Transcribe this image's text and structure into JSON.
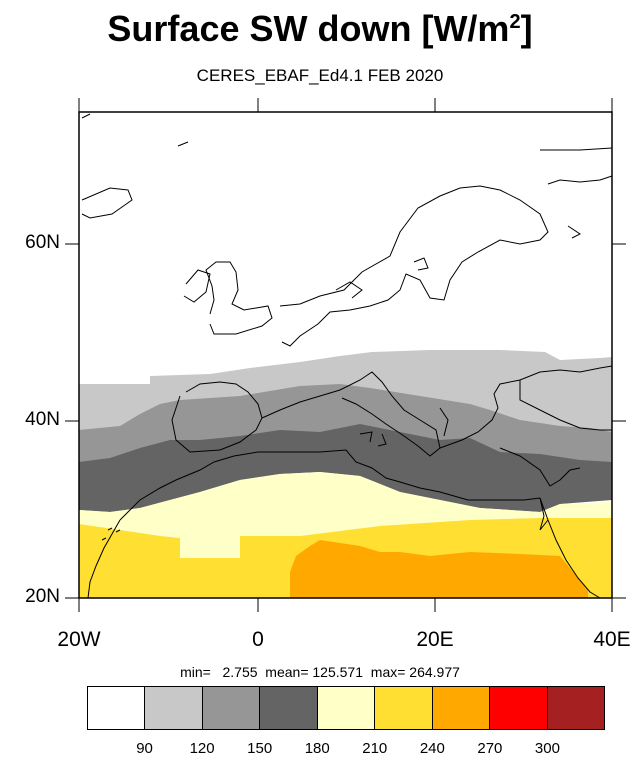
{
  "title": "Surface SW down [W/m",
  "title_sup": "2",
  "title_close": "]",
  "subtitle": "CERES_EBAF_Ed4.1 FEB 2020",
  "map": {
    "lon_range": [
      -20,
      40
    ],
    "lat_range": [
      20,
      75
    ],
    "y_ticks": [
      "60N",
      "40N",
      "20N"
    ],
    "x_ticks": [
      "20W",
      "0",
      "20E",
      "40E"
    ]
  },
  "stats_text": "min=   2.755  mean= 125.571  max= 264.977",
  "colorbar": {
    "colors": [
      "#ffffff",
      "#c8c8c8",
      "#969696",
      "#646464",
      "#ffffc8",
      "#ffdf32",
      "#ffa800",
      "#ff0000",
      "#a52020"
    ],
    "labels": [
      "90",
      "120",
      "150",
      "180",
      "210",
      "240",
      "270",
      "300"
    ]
  }
}
